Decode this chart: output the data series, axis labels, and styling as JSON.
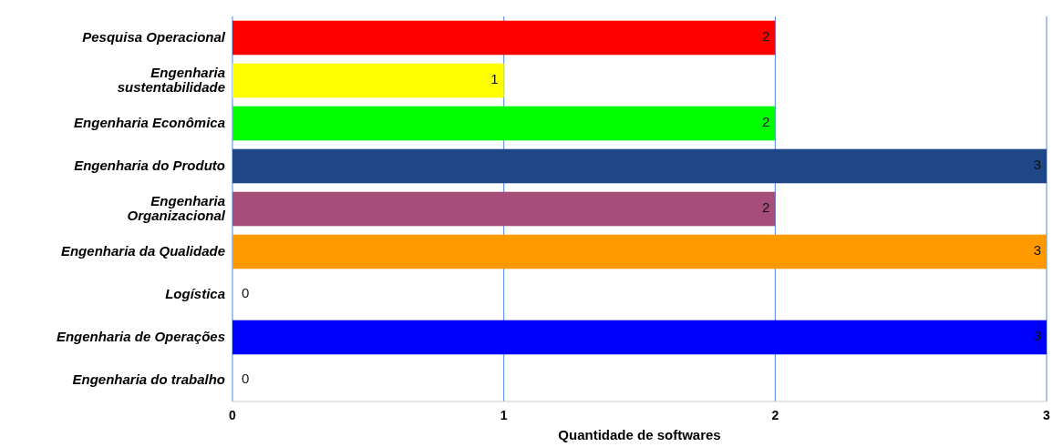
{
  "chart_data": {
    "type": "bar",
    "orientation": "horizontal",
    "xlabel": "Quantidade de softwares",
    "categories": [
      "Pesquisa Operacional",
      "Engenharia sustentabilidade",
      "Engenharia Econômica",
      "Engenharia do Produto",
      "Engenharia Organizacional",
      "Engenharia da Qualidade",
      "Logística",
      "Engenharia de Operações",
      "Engenharia do trabalho"
    ],
    "values": [
      2,
      1,
      2,
      3,
      2,
      3,
      0,
      3,
      0
    ],
    "colors": [
      "#ff0000",
      "#ffff00",
      "#00ff00",
      "#1f4788",
      "#a64d79",
      "#ff9900",
      "#6fa8f0",
      "#0000ff",
      "#6fa8f0"
    ],
    "xlim": [
      0,
      3
    ],
    "xticks": [
      0,
      1,
      2,
      3
    ],
    "grid": "x",
    "data_labels": true
  }
}
